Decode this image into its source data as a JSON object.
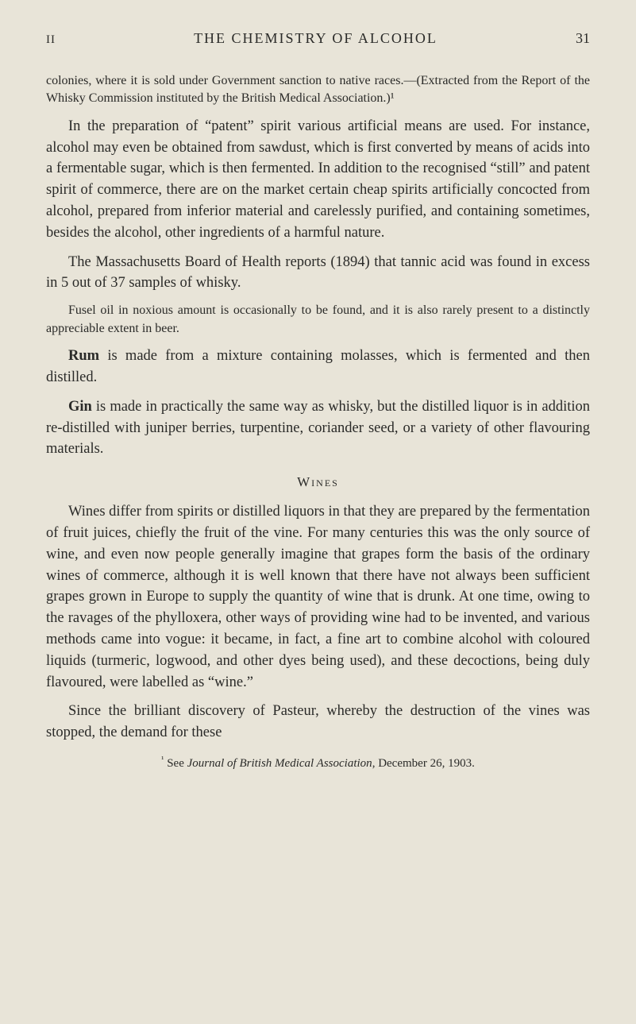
{
  "page": {
    "chapter_num": "II",
    "running_title": "THE CHEMISTRY OF ALCOHOL",
    "page_number": "31"
  },
  "paragraphs": {
    "note1": "colonies, where it is sold under Government sanction to native races.—(Extracted from the Report of the Whisky Commission instituted by the British Medical Association.)¹",
    "p1": "In the preparation of “patent” spirit various artificial means are used. For instance, alcohol may even be obtained from sawdust, which is first converted by means of acids into a fermentable sugar, which is then fermented. In addition to the recognised “still” and patent spirit of commerce, there are on the market certain cheap spirits artificially concocted from alcohol, prepared from inferior material and carelessly purified, and containing sometimes, besides the alcohol, other ingredients of a harmful nature.",
    "p2": "The Massachusetts Board of Health reports (1894) that tannic acid was found in excess in 5 out of 37 samples of whisky.",
    "note2": "Fusel oil in noxious amount is occasionally to be found, and it is also rarely present to a distinctly appreciable extent in beer.",
    "p3_lead": "Rum",
    "p3_rest": " is made from a mixture containing molasses, which is fermented and then distilled.",
    "p4_lead": "Gin",
    "p4_rest": " is made in practically the same way as whisky, but the distilled liquor is in addition re-distilled with juniper berries, turpentine, coriander seed, or a variety of other flavouring materials.",
    "wines_heading": "Wines",
    "p5": "Wines differ from spirits or distilled liquors in that they are prepared by the fermentation of fruit juices, chiefly the fruit of the vine. For many centuries this was the only source of wine, and even now people generally imagine that grapes form the basis of the ordinary wines of commerce, although it is well known that there have not always been sufficient grapes grown in Europe to supply the quantity of wine that is drunk. At one time, owing to the ravages of the phylloxera, other ways of providing wine had to be invented, and various methods came into vogue: it became, in fact, a fine art to combine alcohol with coloured liquids (turmeric, logwood, and other dyes being used), and these decoctions, being duly flavoured, were labelled as “wine.”",
    "p6": "Since the brilliant discovery of Pasteur, whereby the destruction of the vines was stopped, the demand for these",
    "footnote_marker": "¹",
    "footnote_text_a": " See ",
    "footnote_italic": "Journal of British Medical Association",
    "footnote_text_b": ", December 26, 1903."
  },
  "colors": {
    "background": "#e8e4d8",
    "text": "#2a2a28"
  },
  "typography": {
    "body_fontsize": 18.5,
    "small_fontsize": 16,
    "footnote_fontsize": 15,
    "header_fontsize": 18,
    "line_height": 1.45
  }
}
